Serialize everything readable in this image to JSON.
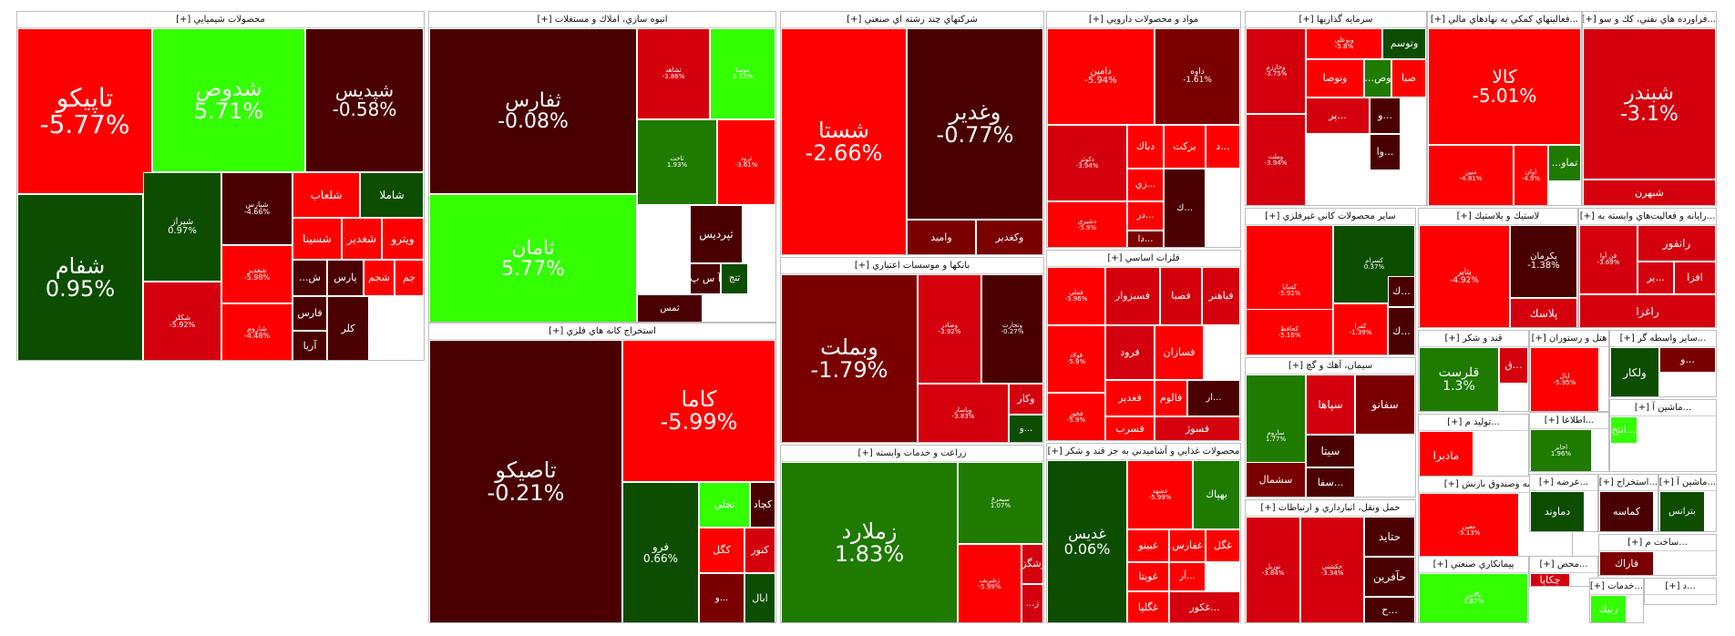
{
  "colors": {
    "deep_red": "#4a0000",
    "dark_red": "#7a0000",
    "red": "#d4000d",
    "bright_red": "#ff0000",
    "dark_green": "#0d4d00",
    "green": "#1f7a00",
    "bright_green": "#33ff00"
  },
  "chart_data": {
    "type": "treemap",
    "metric": "daily percent change",
    "sectors": [
      {
        "title": "محصولات شيميايي [+]",
        "tiles": [
          {
            "name": "تاپيكو",
            "change": "-5.77%",
            "value": -5.77
          },
          {
            "name": "شدوص",
            "change": "5.71%",
            "value": 5.71
          },
          {
            "name": "شپديس",
            "change": "-0.58%",
            "value": -0.58
          },
          {
            "name": "شفام",
            "change": "0.95%",
            "value": 0.95
          },
          {
            "name": "شيراز",
            "change": "0.97%",
            "value": 0.97
          },
          {
            "name": "شپارس",
            "change": "-4.66%",
            "value": -4.66
          },
          {
            "name": "شغدير",
            "change": "-5.98%",
            "value": -5.98
          },
          {
            "name": "شكلر",
            "change": "-5.92%",
            "value": -5.92
          },
          {
            "name": "شاروم",
            "change": "-4.48%",
            "value": -4.48
          },
          {
            "name": "شلعاب",
            "change": "",
            "value": null
          },
          {
            "name": "شاملا",
            "change": "",
            "value": null
          },
          {
            "name": "شسينا",
            "change": "",
            "value": null
          },
          {
            "name": "شغدير",
            "change": "",
            "value": null
          },
          {
            "name": "ويترو",
            "change": "",
            "value": null
          },
          {
            "name": "ش...",
            "change": "",
            "value": null
          },
          {
            "name": "پارس",
            "change": "",
            "value": null
          },
          {
            "name": "شجم",
            "change": "",
            "value": null
          },
          {
            "name": "جم",
            "change": "",
            "value": null
          },
          {
            "name": "فارس",
            "change": "",
            "value": null
          },
          {
            "name": "آريا",
            "change": "",
            "value": null
          },
          {
            "name": "كلر",
            "change": "",
            "value": null
          }
        ]
      },
      {
        "title": "انبوه سازي، املاك و مستغلات [+]",
        "tiles": [
          {
            "name": "ثفارس",
            "change": "-0.08%",
            "value": -0.08
          },
          {
            "name": "ثشاهد",
            "change": "-3.86%",
            "value": -3.86
          },
          {
            "name": "ثنوسا",
            "change": "3.33%",
            "value": 3.33
          },
          {
            "name": "ثامان",
            "change": "5.77%",
            "value": 5.77
          },
          {
            "name": "ثاخت",
            "change": "1.93%",
            "value": 1.93
          },
          {
            "name": "ثرود",
            "change": "-3.61%",
            "value": -3.61
          },
          {
            "name": "ثپرديس",
            "change": "",
            "value": null
          },
          {
            "name": "آ س پ",
            "change": "",
            "value": null
          },
          {
            "name": "ثتج",
            "change": "",
            "value": null
          },
          {
            "name": "ثمس",
            "change": "",
            "value": null
          }
        ]
      },
      {
        "title": "استخراج كانه هاي فلزي [+]",
        "tiles": [
          {
            "name": "تاصيكو",
            "change": "-0.21%",
            "value": -0.21
          },
          {
            "name": "كاما",
            "change": "-5.99%",
            "value": -5.99
          },
          {
            "name": "فرو",
            "change": "0.66%",
            "value": 0.66
          },
          {
            "name": "تجلي",
            "change": "",
            "value": null
          },
          {
            "name": "كچاد",
            "change": "",
            "value": null
          },
          {
            "name": "كگل",
            "change": "",
            "value": null
          },
          {
            "name": "كنور",
            "change": "",
            "value": null
          },
          {
            "name": "ابال",
            "change": "",
            "value": null
          },
          {
            "name": "...و",
            "change": "",
            "value": null
          }
        ]
      },
      {
        "title": "شركتهاي چند رشته اي صنعتي [+]",
        "tiles": [
          {
            "name": "شستا",
            "change": "-2.66%",
            "value": -2.66
          },
          {
            "name": "وغدير",
            "change": "-0.77%",
            "value": -0.77
          },
          {
            "name": "واميد",
            "change": "",
            "value": null
          },
          {
            "name": "وكغدير",
            "change": "",
            "value": null
          }
        ]
      },
      {
        "title": "بانكها و موسسات اعتباري [+]",
        "tiles": [
          {
            "name": "وبملت",
            "change": "-1.79%",
            "value": -1.79
          },
          {
            "name": "وصادر",
            "change": "-3.92%",
            "value": -3.92
          },
          {
            "name": "وتجارت",
            "change": "-0.27%",
            "value": -0.27
          },
          {
            "name": "وپاسار",
            "change": "-3.83%",
            "value": -3.83
          },
          {
            "name": "وكار",
            "change": "",
            "value": null
          },
          {
            "name": "...و",
            "change": "",
            "value": null
          }
        ]
      },
      {
        "title": "زراعت و خدمات وابسته [+]",
        "tiles": [
          {
            "name": "زملارد",
            "change": "1.83%",
            "value": 1.83
          },
          {
            "name": "سيمرغ",
            "change": "1.07%",
            "value": 1.07
          },
          {
            "name": "زشريف",
            "change": "-5.99%",
            "value": -5.99
          },
          {
            "name": "زشگزا",
            "change": "",
            "value": null
          },
          {
            "name": "ز...",
            "change": "",
            "value": null
          }
        ]
      },
      {
        "title": "مواد و محصولات دارويي [+]",
        "tiles": [
          {
            "name": "دامين",
            "change": "-5.94%",
            "value": -5.94
          },
          {
            "name": "داوه",
            "change": "-1.61%",
            "value": -1.61
          },
          {
            "name": "دكوثر",
            "change": "-3.94%",
            "value": -3.94
          },
          {
            "name": "دباك",
            "change": "",
            "value": null
          },
          {
            "name": "بركت",
            "change": "",
            "value": null
          },
          {
            "name": "...د",
            "change": "",
            "value": null
          },
          {
            "name": "دشيري",
            "change": "-5.9%",
            "value": -5.9
          },
          {
            "name": "...زي",
            "change": "",
            "value": null
          },
          {
            "name": "...در",
            "change": "",
            "value": null
          },
          {
            "name": "...دا",
            "change": "",
            "value": null
          },
          {
            "name": "...ك",
            "change": "",
            "value": null
          }
        ]
      },
      {
        "title": "فلزات اساسي [+]",
        "tiles": [
          {
            "name": "فملي",
            "change": "-5.96%",
            "value": -5.96
          },
          {
            "name": "فسبزوار",
            "change": "",
            "value": null
          },
          {
            "name": "فصبا",
            "change": "",
            "value": null
          },
          {
            "name": "فباهنر",
            "change": "",
            "value": null
          },
          {
            "name": "فولاد",
            "change": "-5.9%",
            "value": -5.9
          },
          {
            "name": "فرود",
            "change": "",
            "value": null
          },
          {
            "name": "فسازان",
            "change": "",
            "value": null
          },
          {
            "name": "فغدير",
            "change": "",
            "value": null
          },
          {
            "name": "فالوم",
            "change": "",
            "value": null
          },
          {
            "name": "...ار",
            "change": "",
            "value": null
          },
          {
            "name": "فخوز",
            "change": "-5.9%",
            "value": -5.9
          },
          {
            "name": "فسرب",
            "change": "",
            "value": null
          },
          {
            "name": "فسوژ",
            "change": "",
            "value": null
          }
        ]
      },
      {
        "title": "محصولات غذايي و آشاميدني به جز قند و شكر [+]",
        "tiles": [
          {
            "name": "غديس",
            "change": "0.06%",
            "value": 0.06
          },
          {
            "name": "غشهد",
            "change": "-5.99%",
            "value": -5.99
          },
          {
            "name": "بهپاك",
            "change": "",
            "value": null
          },
          {
            "name": "غبينو",
            "change": "",
            "value": null
          },
          {
            "name": "غفارس",
            "change": "",
            "value": null
          },
          {
            "name": "غگل",
            "change": "",
            "value": null
          },
          {
            "name": "غويتا",
            "change": "",
            "value": null
          },
          {
            "name": "...آر",
            "change": "",
            "value": null
          },
          {
            "name": "غگلپا",
            "change": "",
            "value": null
          },
          {
            "name": "...غكور",
            "change": "",
            "value": null
          }
        ]
      },
      {
        "title": "سرمايه گذاريها [+]",
        "tiles": [
          {
            "name": "وخارزم",
            "change": "-3.75%",
            "value": -3.75
          },
          {
            "name": "وبوعلي",
            "change": "-5.8%",
            "value": -5.8
          },
          {
            "name": "وتوسم",
            "change": "",
            "value": null
          },
          {
            "name": "وتوصا",
            "change": "",
            "value": null
          },
          {
            "name": "وص...",
            "change": "",
            "value": null
          },
          {
            "name": "صبا",
            "change": "",
            "value": null
          },
          {
            "name": "وملت",
            "change": "-3.94%",
            "value": -3.94
          },
          {
            "name": "...پر",
            "change": "",
            "value": null
          },
          {
            "name": "...و",
            "change": "",
            "value": null
          },
          {
            "name": "...وا",
            "change": "",
            "value": null
          }
        ]
      },
      {
        "title": "...فعاليتهاي كمكي به نهادهاي مالي [+]",
        "tiles": [
          {
            "name": "كالا",
            "change": "-5.01%",
            "value": -5.01
          },
          {
            "name": "مبين",
            "change": "-4.81%",
            "value": -4.81
          },
          {
            "name": "اوان",
            "change": "-4.9%",
            "value": -4.9
          },
          {
            "name": "تماو...",
            "change": "",
            "value": null
          }
        ]
      },
      {
        "title": "...فراورده هاي نفتي، كك و سو [+]",
        "tiles": [
          {
            "name": "شبندر",
            "change": "-3.1%",
            "value": -3.1
          },
          {
            "name": "شبهرن",
            "change": "",
            "value": null
          }
        ]
      },
      {
        "title": "ساير محصولات كاني غيرفلزي [+]",
        "tiles": [
          {
            "name": "كساپا",
            "change": "-5.92%",
            "value": -5.92
          },
          {
            "name": "كسرام",
            "change": "0.37%",
            "value": 0.37
          },
          {
            "name": "كحافظ",
            "change": "-5.16%",
            "value": -5.16
          },
          {
            "name": "كفرا",
            "change": "-1.39%",
            "value": -1.39
          },
          {
            "name": "...ك",
            "change": "",
            "value": null
          },
          {
            "name": "...ك",
            "change": "",
            "value": null
          }
        ]
      },
      {
        "title": "لاستيك و پلاستيك [+]",
        "tiles": [
          {
            "name": "پتاير",
            "change": "-4.92%",
            "value": -4.92
          },
          {
            "name": "پكرمان",
            "change": "-1.38%",
            "value": -1.38
          },
          {
            "name": "پلاسك",
            "change": "",
            "value": null
          }
        ]
      },
      {
        "title": "...رايانه و فعاليت‌هاي وابسته به [+]",
        "tiles": [
          {
            "name": "فن آوا",
            "change": "-3.69%",
            "value": -3.69
          },
          {
            "name": "رانفور",
            "change": "",
            "value": null
          },
          {
            "name": "...ير",
            "change": "",
            "value": null
          },
          {
            "name": "افزا",
            "change": "",
            "value": null
          },
          {
            "name": "راغزا",
            "change": "",
            "value": null
          }
        ]
      },
      {
        "title": "سيمان، آهك و گچ [+]",
        "tiles": [
          {
            "name": "ساروم",
            "change": "1.77%",
            "value": 1.77
          },
          {
            "name": "سپاها",
            "change": "",
            "value": null
          },
          {
            "name": "سفانو",
            "change": "",
            "value": null
          },
          {
            "name": "سيتا",
            "change": "",
            "value": null
          },
          {
            "name": "...سفا",
            "change": "",
            "value": null
          },
          {
            "name": "سشمال",
            "change": "",
            "value": null
          }
        ]
      },
      {
        "title": "قند و شكر [+]",
        "tiles": [
          {
            "name": "قلرست",
            "change": "1.3%",
            "value": 1.3
          },
          {
            "name": "...ق",
            "change": "",
            "value": null
          }
        ]
      },
      {
        "title": "هتل و رستوران [+]",
        "tiles": [
          {
            "name": "اپال",
            "change": "-5.95%",
            "value": -5.95
          }
        ]
      },
      {
        "title": "...ساير واسطه گر [+]",
        "tiles": [
          {
            "name": "ولكار",
            "change": "",
            "value": null
          },
          {
            "name": "...و",
            "change": "",
            "value": null
          }
        ]
      },
      {
        "title": "حمل ونقل، انبارداري و ارتباطات [+]",
        "tiles": [
          {
            "name": "توريل",
            "change": "-3.84%",
            "value": -3.84
          },
          {
            "name": "حكشتي",
            "change": "-3.34%",
            "value": -3.34
          },
          {
            "name": "حتايد",
            "change": "",
            "value": null
          },
          {
            "name": "حآفرين",
            "change": "",
            "value": null
          },
          {
            "name": "...ح",
            "change": "",
            "value": null
          }
        ]
      },
      {
        "title": "...اطلاعا [+]",
        "tiles": [
          {
            "name": "اخابر",
            "change": "1.96%",
            "value": 1.96
          }
        ]
      },
      {
        "title": "...ماشين آ [+]",
        "tiles": [
          {
            "name": "...انتخ",
            "change": "",
            "value": null
          }
        ]
      },
      {
        "title": "...توليد م [+]",
        "tiles": [
          {
            "name": "مادبرا",
            "change": "",
            "value": null
          },
          {
            "name": "...ل",
            "change": "",
            "value": null
          }
        ]
      },
      {
        "title": "...بيمه وصندوق بازنش [+]",
        "tiles": [
          {
            "name": "معين",
            "change": "-5.13%",
            "value": -5.13
          }
        ]
      },
      {
        "title": "...عرضه [+]",
        "tiles": [
          {
            "name": "دماوند",
            "change": "",
            "value": null
          }
        ]
      },
      {
        "title": "...استخراج [+]",
        "tiles": [
          {
            "name": "كماسه",
            "change": "",
            "value": null
          }
        ]
      },
      {
        "title": "...ماشين آ [+]",
        "tiles": [
          {
            "name": "بترانس",
            "change": "",
            "value": null
          }
        ]
      },
      {
        "title": "...ساخت م [+]",
        "tiles": [
          {
            "name": "فاراك",
            "change": "",
            "value": null
          }
        ]
      },
      {
        "title": "پيمانكاري صنعتي [+]",
        "tiles": [
          {
            "name": "بالاس",
            "change": "3.87%",
            "value": 3.87
          }
        ]
      },
      {
        "title": "...محص [+]",
        "tiles": [
          {
            "name": "چكاپا",
            "change": "",
            "value": null
          }
        ]
      },
      {
        "title": "...خدمات [+]",
        "tiles": [
          {
            "name": "رنيك",
            "change": "",
            "value": null
          }
        ]
      },
      {
        "title": "...د [+]",
        "tiles": []
      }
    ]
  }
}
